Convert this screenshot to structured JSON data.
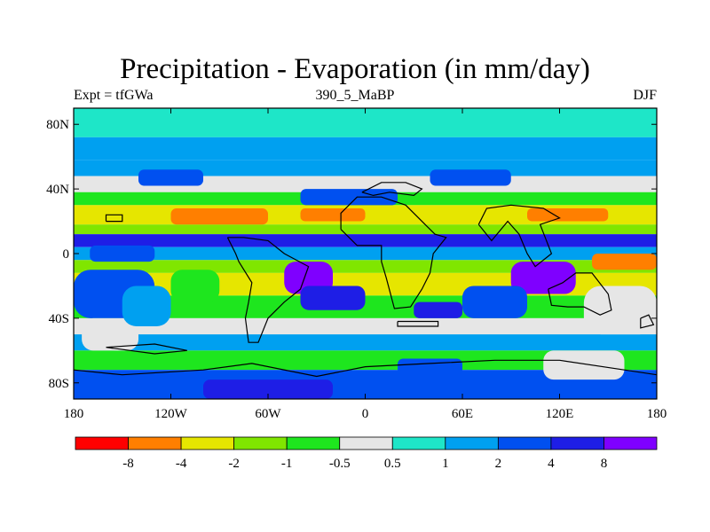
{
  "chart_data": {
    "type": "heatmap",
    "title": "Precipitation - Evaporation (in mm/day)",
    "subtitle_left": "Expt = tfGWa",
    "subtitle_center": "390_5_MaBP",
    "subtitle_right": "DJF",
    "xlim": [
      -180,
      180
    ],
    "ylim": [
      -90,
      90
    ],
    "x_ticks": [
      {
        "value": -180,
        "label": "180"
      },
      {
        "value": -120,
        "label": "120W"
      },
      {
        "value": -60,
        "label": "60W"
      },
      {
        "value": 0,
        "label": "0"
      },
      {
        "value": 60,
        "label": "60E"
      },
      {
        "value": 120,
        "label": "120E"
      },
      {
        "value": 180,
        "label": "180"
      }
    ],
    "y_ticks": [
      {
        "value": 80,
        "label": "80N"
      },
      {
        "value": 40,
        "label": "40N"
      },
      {
        "value": 0,
        "label": "0"
      },
      {
        "value": -40,
        "label": "40S"
      },
      {
        "value": -80,
        "label": "80S"
      }
    ],
    "colorbar": {
      "colors": [
        "#ff0000",
        "#ff7f00",
        "#e6e600",
        "#80e600",
        "#1ee61e",
        "#e6e6e6",
        "#1ee6c8",
        "#00a0f0",
        "#0050f0",
        "#1e1ee6",
        "#7f00ff"
      ],
      "boundaries": [
        {
          "value": -8,
          "label": "-8"
        },
        {
          "value": -4,
          "label": "-4"
        },
        {
          "value": -2,
          "label": "-2"
        },
        {
          "value": -1,
          "label": "-1"
        },
        {
          "value": -0.5,
          "label": "-0.5"
        },
        {
          "value": 0.5,
          "label": "0.5"
        },
        {
          "value": 1,
          "label": "1"
        },
        {
          "value": 2,
          "label": "2"
        },
        {
          "value": 4,
          "label": "4"
        },
        {
          "value": 8,
          "label": "8"
        }
      ]
    },
    "bands": [
      {
        "lat_min": 72,
        "lat_max": 90,
        "level": 6
      },
      {
        "lat_min": 58,
        "lat_max": 72,
        "level": 7
      },
      {
        "lat_min": 48,
        "lat_max": 58,
        "level": 7
      },
      {
        "lat_min": 38,
        "lat_max": 48,
        "level": 5
      },
      {
        "lat_min": 30,
        "lat_max": 38,
        "level": 4
      },
      {
        "lat_min": 18,
        "lat_max": 30,
        "level": 2
      },
      {
        "lat_min": 12,
        "lat_max": 18,
        "level": 3
      },
      {
        "lat_min": 4,
        "lat_max": 12,
        "level": 9
      },
      {
        "lat_min": -4,
        "lat_max": 4,
        "level": 7
      },
      {
        "lat_min": -12,
        "lat_max": -4,
        "level": 3
      },
      {
        "lat_min": -26,
        "lat_max": -12,
        "level": 2
      },
      {
        "lat_min": -40,
        "lat_max": -26,
        "level": 4
      },
      {
        "lat_min": -50,
        "lat_max": -40,
        "level": 5
      },
      {
        "lat_min": -60,
        "lat_max": -50,
        "level": 7
      },
      {
        "lat_min": -72,
        "lat_max": -60,
        "level": 4
      },
      {
        "lat_min": -90,
        "lat_max": -72,
        "level": 8
      }
    ],
    "patches": [
      {
        "lon": [
          -180,
          -130
        ],
        "lat": [
          -40,
          -10
        ],
        "level": 8
      },
      {
        "lon": [
          -175,
          -140
        ],
        "lat": [
          -60,
          -40
        ],
        "level": 5
      },
      {
        "lon": [
          -150,
          -120
        ],
        "lat": [
          -45,
          -20
        ],
        "level": 7
      },
      {
        "lon": [
          -120,
          -90
        ],
        "lat": [
          -30,
          -10
        ],
        "level": 4
      },
      {
        "lon": [
          -50,
          -20
        ],
        "lat": [
          -25,
          -5
        ],
        "level": 10
      },
      {
        "lon": [
          -40,
          0
        ],
        "lat": [
          -35,
          -20
        ],
        "level": 9
      },
      {
        "lon": [
          90,
          130
        ],
        "lat": [
          -25,
          -5
        ],
        "level": 10
      },
      {
        "lon": [
          60,
          100
        ],
        "lat": [
          -40,
          -20
        ],
        "level": 8
      },
      {
        "lon": [
          135,
          180
        ],
        "lat": [
          -50,
          -20
        ],
        "level": 5
      },
      {
        "lon": [
          110,
          160
        ],
        "lat": [
          -78,
          -60
        ],
        "level": 5
      },
      {
        "lon": [
          20,
          60
        ],
        "lat": [
          -75,
          -65
        ],
        "level": 8
      },
      {
        "lon": [
          -100,
          -20
        ],
        "lat": [
          -90,
          -78
        ],
        "level": 9
      },
      {
        "lon": [
          -40,
          20
        ],
        "lat": [
          30,
          40
        ],
        "level": 8
      },
      {
        "lon": [
          -120,
          -60
        ],
        "lat": [
          18,
          28
        ],
        "level": 1
      },
      {
        "lon": [
          -40,
          0
        ],
        "lat": [
          20,
          28
        ],
        "level": 1
      },
      {
        "lon": [
          100,
          150
        ],
        "lat": [
          20,
          28
        ],
        "level": 1
      },
      {
        "lon": [
          -140,
          -100
        ],
        "lat": [
          42,
          52
        ],
        "level": 8
      },
      {
        "lon": [
          40,
          90
        ],
        "lat": [
          42,
          52
        ],
        "level": 8
      },
      {
        "lon": [
          140,
          180
        ],
        "lat": [
          -10,
          0
        ],
        "level": 1
      },
      {
        "lon": [
          -170,
          -130
        ],
        "lat": [
          -5,
          5
        ],
        "level": 8
      },
      {
        "lon": [
          30,
          60
        ],
        "lat": [
          -40,
          -30
        ],
        "level": 9
      }
    ]
  }
}
